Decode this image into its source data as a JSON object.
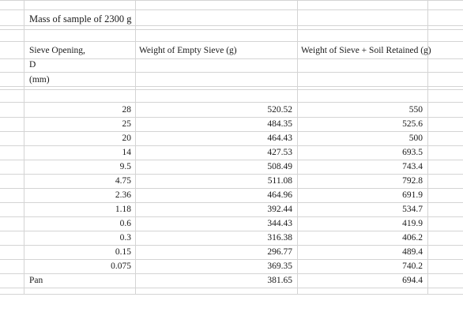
{
  "sheet": {
    "title": "Mass of sample of 2300 g",
    "headers": {
      "col1_line1": "Sieve Opening,",
      "col1_line2": "D",
      "col1_line3": "(mm)",
      "col2": "Weight of Empty Sieve (g)",
      "col3": "Weight of Sieve + Soil Retained (g)"
    },
    "rows": [
      {
        "opening": "28",
        "empty": "520.52",
        "retained": "550"
      },
      {
        "opening": "25",
        "empty": "484.35",
        "retained": "525.6"
      },
      {
        "opening": "20",
        "empty": "464.43",
        "retained": "500"
      },
      {
        "opening": "14",
        "empty": "427.53",
        "retained": "693.5"
      },
      {
        "opening": "9.5",
        "empty": "508.49",
        "retained": "743.4"
      },
      {
        "opening": "4.75",
        "empty": "511.08",
        "retained": "792.8"
      },
      {
        "opening": "2.36",
        "empty": "464.96",
        "retained": "691.9"
      },
      {
        "opening": "1.18",
        "empty": "392.44",
        "retained": "534.7"
      },
      {
        "opening": "0.6",
        "empty": "344.43",
        "retained": "419.9"
      },
      {
        "opening": "0.3",
        "empty": "316.38",
        "retained": "406.2"
      },
      {
        "opening": "0.15",
        "empty": "296.77",
        "retained": "489.4"
      },
      {
        "opening": "0.075",
        "empty": "369.35",
        "retained": "740.2"
      }
    ],
    "pan_row": {
      "label": "Pan",
      "empty": "381.65",
      "retained": "694.4"
    }
  }
}
